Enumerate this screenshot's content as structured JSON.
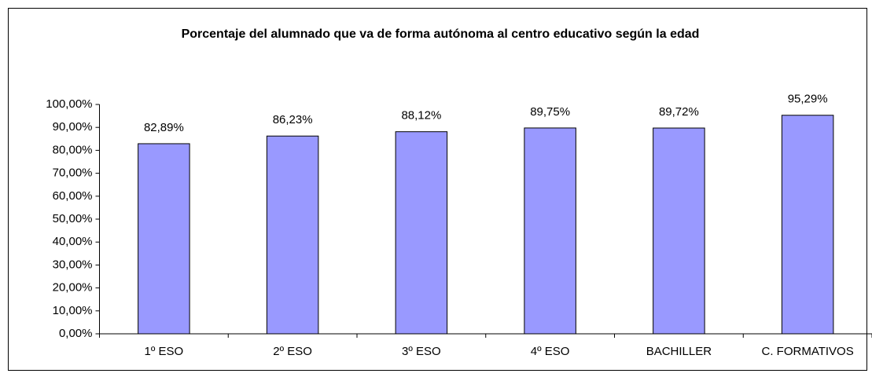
{
  "chart_data": {
    "type": "bar",
    "title": "Porcentaje del alumnado que va de forma autónoma al centro educativo según la edad",
    "categories": [
      "1º ESO",
      "2º ESO",
      "3º ESO",
      "4º ESO",
      "BACHILLER",
      "C. FORMATIVOS"
    ],
    "values": [
      82.89,
      86.23,
      88.12,
      89.75,
      89.72,
      95.29
    ],
    "value_labels": [
      "82,89%",
      "86,23%",
      "88,12%",
      "89,75%",
      "89,72%",
      "95,29%"
    ],
    "color": "#9999ff",
    "ylim": [
      0,
      100
    ],
    "yticks": [
      {
        "value": 0,
        "label": "0,00%"
      },
      {
        "value": 10,
        "label": "10,00%"
      },
      {
        "value": 20,
        "label": "20,00%"
      },
      {
        "value": 30,
        "label": "30,00%"
      },
      {
        "value": 40,
        "label": "40,00%"
      },
      {
        "value": 50,
        "label": "50,00%"
      },
      {
        "value": 60,
        "label": "60,00%"
      },
      {
        "value": 70,
        "label": "70,00%"
      },
      {
        "value": 80,
        "label": "80,00%"
      },
      {
        "value": 90,
        "label": "90,00%"
      },
      {
        "value": 100,
        "label": "100,00%"
      }
    ],
    "grid": false
  }
}
